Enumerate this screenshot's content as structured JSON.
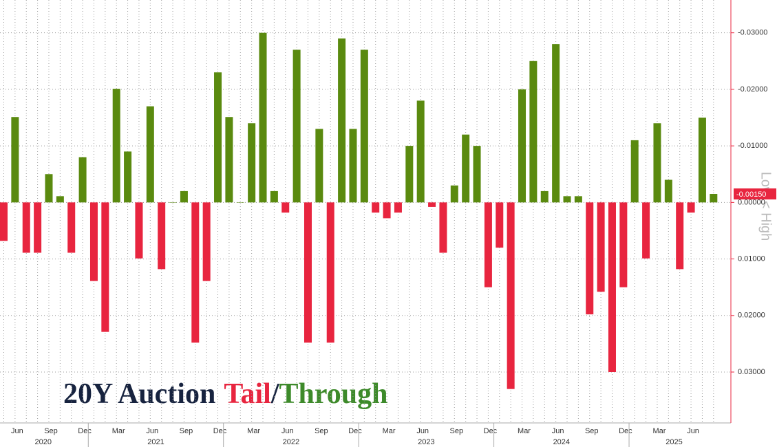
{
  "chart_data": {
    "type": "bar",
    "title_parts": [
      {
        "text": "20Y Auction",
        "color": "#17233f"
      },
      {
        "text": "Tail",
        "color": "#e8253f"
      },
      {
        "text": "/",
        "color": "#17233f"
      },
      {
        "text": "Through",
        "color": "#3d8a2a"
      }
    ],
    "y_axis_label": "Low < High",
    "categories": [
      null,
      "Jun",
      null,
      null,
      "Sep",
      null,
      null,
      "Dec",
      null,
      null,
      "Mar",
      null,
      null,
      "Jun",
      null,
      null,
      "Sep",
      null,
      null,
      "Dec",
      null,
      null,
      "Mar",
      null,
      null,
      "Jun",
      null,
      null,
      "Sep",
      null,
      null,
      "Dec",
      null,
      null,
      "Mar",
      null,
      null,
      "Jun",
      null,
      null,
      "Sep",
      null,
      null,
      "Dec",
      null,
      null,
      "Mar",
      null,
      null,
      "Jun",
      null,
      null,
      "Sep",
      null,
      null,
      "Dec",
      null,
      null,
      "Mar",
      null,
      null,
      "Jun",
      null,
      null
    ],
    "years": [
      "2020",
      "2021",
      "2022",
      "2023",
      "2024",
      "2025"
    ],
    "values": [
      0.0068,
      -0.0151,
      0.0089,
      0.0089,
      -0.005,
      -0.0011,
      0.0089,
      -0.008,
      0.0139,
      0.0229,
      -0.0201,
      -0.009,
      0.0099,
      -0.017,
      0.0118,
      0,
      -0.002,
      0.0248,
      0.0139,
      -0.023,
      -0.0151,
      0,
      -0.014,
      -0.03,
      -0.002,
      0.0018,
      -0.027,
      0.0248,
      -0.013,
      0.0248,
      -0.029,
      -0.013,
      -0.027,
      0.0018,
      0.0028,
      0.0018,
      -0.01,
      -0.018,
      0.0008,
      0.0089,
      -0.003,
      -0.012,
      -0.01,
      0.015,
      0.008,
      0.033,
      -0.02,
      -0.025,
      -0.002,
      -0.028,
      -0.0011,
      -0.0011,
      0.0198,
      0.0158,
      0.03,
      0.015,
      -0.011,
      0.0099,
      -0.014,
      -0.004,
      0.0118,
      0.0018,
      -0.015,
      -0.0015
    ],
    "positive_color": "#e8253f",
    "negative_color": "#5a8a0f",
    "ylim": [
      -0.0358,
      0.039
    ],
    "y_inverted": true,
    "yticks": [
      {
        "value": -0.03,
        "label": "-0.03000"
      },
      {
        "value": -0.02,
        "label": "-0.02000"
      },
      {
        "value": -0.01,
        "label": "-0.01000"
      },
      {
        "value": 0,
        "label": "0.00000"
      },
      {
        "value": 0.01,
        "label": "0.01000"
      },
      {
        "value": 0.02,
        "label": "0.02000"
      },
      {
        "value": 0.03,
        "label": "0.03000"
      }
    ],
    "last_value": {
      "value": -0.0015,
      "label": "-0.00150"
    },
    "grid": true
  }
}
